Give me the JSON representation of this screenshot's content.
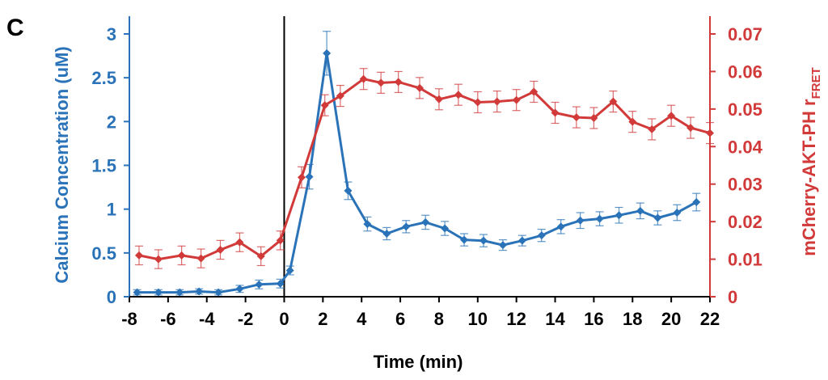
{
  "chart_data": {
    "type": "line",
    "panel_label": "C",
    "xlabel": "Time (min)",
    "ylabel_left": "Calcium Concentration (uM)",
    "ylabel_right": "mCherry-AKT-PH r",
    "ylabel_right_sub": "FRET",
    "xlim": [
      -8,
      22
    ],
    "xticks": [
      -8,
      -6,
      -4,
      -2,
      0,
      2,
      4,
      6,
      8,
      10,
      12,
      14,
      16,
      18,
      20,
      22
    ],
    "xtick_labels": [
      "-8",
      "-6",
      "-4",
      "-2",
      "0",
      "2",
      "4",
      "6",
      "8",
      "10",
      "12",
      "14",
      "16",
      "18",
      "20",
      "22"
    ],
    "ylim_left": [
      0,
      3
    ],
    "yticks_left": [
      0,
      0.5,
      1,
      1.5,
      2,
      2.5,
      3
    ],
    "ytick_labels_left": [
      "0",
      "0.5",
      "1",
      "1.5",
      "2",
      "2.5",
      "3"
    ],
    "ylim_right": [
      0,
      0.07
    ],
    "yticks_right": [
      0,
      0.01,
      0.02,
      0.03,
      0.04,
      0.05,
      0.06,
      0.07
    ],
    "ytick_labels_right": [
      "0",
      "0.01",
      "0.02",
      "0.03",
      "0.04",
      "0.05",
      "0.06",
      "0.07"
    ],
    "vline_x": 0,
    "colors": {
      "calcium": "#2a73b8",
      "fret": "#d23a3a",
      "axis": "#000000"
    },
    "series": [
      {
        "name": "Calcium Concentration (uM)",
        "axis": "left",
        "color": "#2a73b8",
        "marker": "diamond",
        "x": [
          -7.6,
          -6.5,
          -5.4,
          -4.4,
          -3.4,
          -2.3,
          -1.3,
          -0.2,
          0.3,
          1.3,
          2.2,
          3.3,
          4.3,
          5.3,
          6.3,
          7.3,
          8.3,
          9.3,
          10.3,
          11.3,
          12.3,
          13.3,
          14.3,
          15.3,
          16.3,
          17.3,
          18.4,
          19.3,
          20.3,
          21.3
        ],
        "y": [
          0.05,
          0.05,
          0.05,
          0.06,
          0.05,
          0.09,
          0.14,
          0.15,
          0.3,
          1.37,
          2.78,
          1.21,
          0.83,
          0.72,
          0.8,
          0.85,
          0.78,
          0.65,
          0.64,
          0.59,
          0.64,
          0.7,
          0.8,
          0.87,
          0.89,
          0.93,
          0.98,
          0.9,
          0.96,
          1.08
        ],
        "err": [
          0.03,
          0.03,
          0.03,
          0.03,
          0.03,
          0.04,
          0.05,
          0.05,
          0.05,
          0.14,
          0.25,
          0.1,
          0.08,
          0.07,
          0.07,
          0.08,
          0.08,
          0.07,
          0.07,
          0.06,
          0.06,
          0.07,
          0.08,
          0.09,
          0.08,
          0.09,
          0.09,
          0.08,
          0.09,
          0.1
        ]
      },
      {
        "name": "mCherry-AKT-PH rFRET",
        "axis": "right",
        "color": "#d23a3a",
        "marker": "diamond",
        "x": [
          -7.5,
          -6.5,
          -5.3,
          -4.3,
          -3.3,
          -2.3,
          -1.2,
          -0.2,
          0.9,
          2.1,
          2.9,
          4.1,
          5.0,
          5.9,
          7.0,
          8.0,
          9.0,
          10.0,
          11.0,
          12.0,
          12.9,
          14.0,
          15.1,
          16.0,
          17.0,
          18.0,
          19.0,
          20.0,
          21.0,
          22.0
        ],
        "y": [
          0.011,
          0.01,
          0.011,
          0.0102,
          0.0125,
          0.0145,
          0.0108,
          0.015,
          0.0318,
          0.051,
          0.0535,
          0.058,
          0.057,
          0.0572,
          0.0556,
          0.0526,
          0.0538,
          0.0518,
          0.052,
          0.0524,
          0.0546,
          0.049,
          0.0478,
          0.0476,
          0.052,
          0.0466,
          0.0446,
          0.0482,
          0.045,
          0.0436
        ],
        "err": [
          0.0025,
          0.0025,
          0.0025,
          0.0025,
          0.0025,
          0.0025,
          0.0025,
          0.0025,
          0.0028,
          0.0028,
          0.0028,
          0.0028,
          0.0028,
          0.0028,
          0.0028,
          0.0028,
          0.0028,
          0.0028,
          0.0028,
          0.0028,
          0.0028,
          0.0028,
          0.0028,
          0.0028,
          0.0028,
          0.0028,
          0.0028,
          0.0028,
          0.0028,
          0.0028
        ]
      }
    ]
  }
}
